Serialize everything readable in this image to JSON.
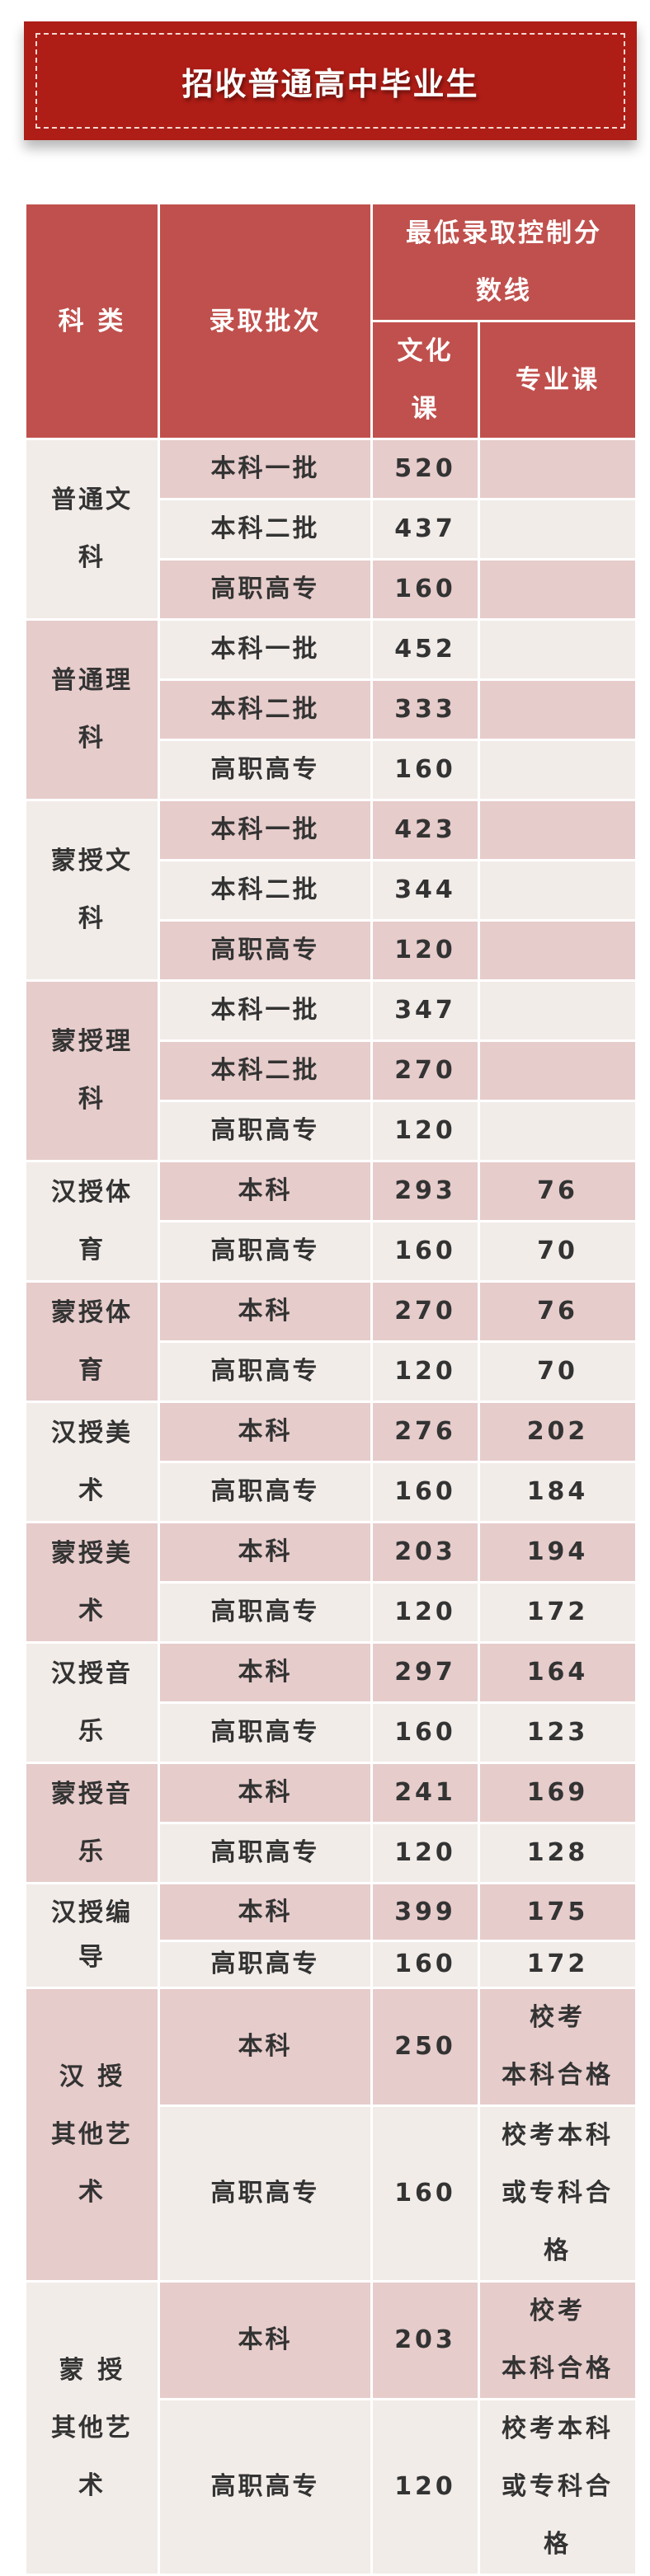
{
  "title": "招收普通高中毕业生",
  "colors": {
    "header": "#c0504d",
    "banner": "#ae1d16",
    "stripe_pink": "#e6cccb",
    "stripe_light": "#f2ece9"
  },
  "table": {
    "headers": {
      "category": "科  类",
      "batch": "录取批次",
      "min_score": "最低录取控制分\n数线",
      "culture": "文化\n课",
      "major": "专业课"
    },
    "groups": [
      {
        "name": "普通文\n科",
        "rows": [
          {
            "batch": "本科一批",
            "culture": "520",
            "major": ""
          },
          {
            "batch": "本科二批",
            "culture": "437",
            "major": ""
          },
          {
            "batch": "高职高专",
            "culture": "160",
            "major": ""
          }
        ]
      },
      {
        "name": "普通理\n科",
        "rows": [
          {
            "batch": "本科一批",
            "culture": "452",
            "major": ""
          },
          {
            "batch": "本科二批",
            "culture": "333",
            "major": ""
          },
          {
            "batch": "高职高专",
            "culture": "160",
            "major": ""
          }
        ]
      },
      {
        "name": "蒙授文\n科",
        "rows": [
          {
            "batch": "本科一批",
            "culture": "423",
            "major": ""
          },
          {
            "batch": "本科二批",
            "culture": "344",
            "major": ""
          },
          {
            "batch": "高职高专",
            "culture": "120",
            "major": ""
          }
        ]
      },
      {
        "name": "蒙授理\n科",
        "rows": [
          {
            "batch": "本科一批",
            "culture": "347",
            "major": ""
          },
          {
            "batch": "本科二批",
            "culture": "270",
            "major": ""
          },
          {
            "batch": "高职高专",
            "culture": "120",
            "major": ""
          }
        ]
      },
      {
        "name": "汉授体\n育",
        "rows": [
          {
            "batch": "本科",
            "culture": "293",
            "major": "76"
          },
          {
            "batch": "高职高专",
            "culture": "160",
            "major": "70"
          }
        ]
      },
      {
        "name": "蒙授体\n育",
        "rows": [
          {
            "batch": "本科",
            "culture": "270",
            "major": "76"
          },
          {
            "batch": "高职高专",
            "culture": "120",
            "major": "70"
          }
        ]
      },
      {
        "name": "汉授美\n术",
        "rows": [
          {
            "batch": "本科",
            "culture": "276",
            "major": "202"
          },
          {
            "batch": "高职高专",
            "culture": "160",
            "major": "184"
          }
        ]
      },
      {
        "name": "蒙授美\n术",
        "rows": [
          {
            "batch": "本科",
            "culture": "203",
            "major": "194"
          },
          {
            "batch": "高职高专",
            "culture": "120",
            "major": "172"
          }
        ]
      },
      {
        "name": "汉授音\n乐",
        "rows": [
          {
            "batch": "本科",
            "culture": "297",
            "major": "164"
          },
          {
            "batch": "高职高专",
            "culture": "160",
            "major": "123"
          }
        ]
      },
      {
        "name": "蒙授音\n乐",
        "rows": [
          {
            "batch": "本科",
            "culture": "241",
            "major": "169"
          },
          {
            "batch": "高职高专",
            "culture": "120",
            "major": "128"
          }
        ]
      },
      {
        "name": "汉授编\n导",
        "rows": [
          {
            "batch": "本科",
            "culture": "399",
            "major": "175"
          },
          {
            "batch": "高职高专",
            "culture": "160",
            "major": "172"
          }
        ]
      },
      {
        "name": "汉 授\n其他艺\n术",
        "rows": [
          {
            "batch": "本科",
            "culture": "250",
            "major": "校考\n本科合格"
          },
          {
            "batch": "高职高专",
            "culture": "160",
            "major": "校考本科\n或专科合\n格"
          }
        ]
      },
      {
        "name": "蒙 授\n其他艺\n术",
        "rows": [
          {
            "batch": "本科",
            "culture": "203",
            "major": "校考\n本科合格"
          },
          {
            "batch": "高职高专",
            "culture": "120",
            "major": "校考本科\n或专科合\n格"
          }
        ]
      }
    ]
  }
}
